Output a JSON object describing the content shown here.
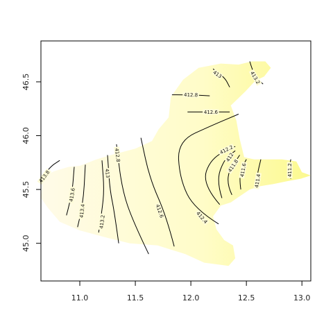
{
  "chart_data": {
    "type": "contour",
    "title": "",
    "xlabel": "",
    "ylabel": "",
    "xlim": [
      10.65,
      13.08
    ],
    "ylim": [
      44.65,
      46.88
    ],
    "x_ticks": [
      {
        "value": 11.0,
        "label": "11.0"
      },
      {
        "value": 11.5,
        "label": "11.5"
      },
      {
        "value": 12.0,
        "label": "12.0"
      },
      {
        "value": 12.5,
        "label": "12.5"
      },
      {
        "value": 13.0,
        "label": "13.0"
      }
    ],
    "y_ticks": [
      {
        "value": 45.0,
        "label": "45.0"
      },
      {
        "value": 45.5,
        "label": "45.5"
      },
      {
        "value": 46.0,
        "label": "46.0"
      },
      {
        "value": 46.5,
        "label": "46.5"
      }
    ],
    "grid": false,
    "fill_colors": {
      "low": "#fffbe8",
      "mid": "#fffcc8",
      "high": "#fcf98e"
    },
    "region_outline": [
      [
        11.71,
        46.06
      ],
      [
        11.8,
        46.17
      ],
      [
        11.82,
        46.36
      ],
      [
        11.93,
        46.52
      ],
      [
        12.07,
        46.63
      ],
      [
        12.27,
        46.67
      ],
      [
        12.43,
        46.66
      ],
      [
        12.55,
        46.69
      ],
      [
        12.67,
        46.69
      ],
      [
        12.72,
        46.63
      ],
      [
        12.66,
        46.55
      ],
      [
        12.58,
        46.51
      ],
      [
        12.49,
        46.41
      ],
      [
        12.36,
        46.28
      ],
      [
        12.41,
        46.14
      ],
      [
        12.44,
        45.97
      ],
      [
        12.48,
        45.8
      ],
      [
        12.57,
        45.78
      ],
      [
        12.72,
        45.78
      ],
      [
        12.82,
        45.78
      ],
      [
        12.95,
        45.76
      ],
      [
        13.0,
        45.66
      ],
      [
        13.08,
        45.63
      ],
      [
        12.99,
        45.6
      ],
      [
        12.88,
        45.58
      ],
      [
        12.74,
        45.55
      ],
      [
        12.62,
        45.53
      ],
      [
        12.53,
        45.5
      ],
      [
        12.43,
        45.43
      ],
      [
        12.36,
        45.38
      ],
      [
        12.27,
        45.35
      ],
      [
        12.2,
        45.25
      ],
      [
        12.23,
        45.13
      ],
      [
        12.3,
        45.03
      ],
      [
        12.38,
        44.98
      ],
      [
        12.4,
        44.86
      ],
      [
        12.34,
        44.79
      ],
      [
        12.12,
        44.82
      ],
      [
        11.95,
        44.9
      ],
      [
        11.7,
        44.98
      ],
      [
        11.45,
        45.0
      ],
      [
        11.25,
        45.05
      ],
      [
        11.0,
        45.12
      ],
      [
        10.82,
        45.2
      ],
      [
        10.72,
        45.32
      ],
      [
        10.65,
        45.42
      ],
      [
        10.67,
        45.62
      ],
      [
        10.77,
        45.67
      ],
      [
        10.9,
        45.71
      ],
      [
        11.0,
        45.72
      ],
      [
        11.15,
        45.78
      ],
      [
        11.28,
        45.82
      ],
      [
        11.5,
        45.88
      ],
      [
        11.65,
        45.95
      ],
      [
        11.71,
        46.06
      ]
    ],
    "contours": [
      {
        "level": "413.8",
        "points": [
          [
            10.65,
            45.6
          ],
          [
            10.73,
            45.71
          ],
          [
            10.82,
            45.77
          ]
        ],
        "label_at": [
          10.68,
          45.62
        ]
      },
      {
        "level": "413.6",
        "points": [
          [
            10.88,
            45.26
          ],
          [
            10.93,
            45.45
          ],
          [
            10.95,
            45.71
          ]
        ],
        "label_at": [
          10.93,
          45.45
        ]
      },
      {
        "level": "413.4",
        "points": [
          [
            10.98,
            45.15
          ],
          [
            11.03,
            45.35
          ],
          [
            11.05,
            45.73
          ]
        ],
        "label_at": [
          11.02,
          45.3
        ]
      },
      {
        "level": "413.2",
        "points": [
          [
            11.17,
            45.1
          ],
          [
            11.2,
            45.3
          ],
          [
            11.22,
            45.5
          ],
          [
            11.2,
            45.77
          ]
        ],
        "label_at": [
          11.2,
          45.2
        ]
      },
      {
        "level": "413",
        "points": [
          [
            11.35,
            45.0
          ],
          [
            11.31,
            45.3
          ],
          [
            11.27,
            45.5
          ],
          [
            11.25,
            45.82
          ]
        ],
        "label_at": [
          11.25,
          45.65
        ]
      },
      {
        "level": "412.8",
        "points": [
          [
            11.62,
            44.9
          ],
          [
            11.48,
            45.2
          ],
          [
            11.38,
            45.5
          ],
          [
            11.33,
            45.92
          ]
        ],
        "label_at": [
          11.34,
          45.82
        ]
      },
      {
        "level": "412.6",
        "points": [
          [
            11.85,
            44.97
          ],
          [
            11.78,
            45.25
          ],
          [
            11.63,
            45.6
          ],
          [
            11.55,
            45.98
          ]
        ],
        "label_at": [
          11.72,
          45.3
        ]
      },
      {
        "level": "412.4",
        "points": [
          [
            12.25,
            45.18
          ],
          [
            12.03,
            45.32
          ],
          [
            11.9,
            45.6
          ],
          [
            11.88,
            45.95
          ],
          [
            12.2,
            46.1
          ],
          [
            12.43,
            46.2
          ]
        ],
        "label_at": [
          12.1,
          45.24
        ]
      },
      {
        "level": "412.2",
        "points": [
          [
            12.26,
            45.36
          ],
          [
            12.1,
            45.55
          ],
          [
            12.18,
            45.79
          ],
          [
            12.4,
            45.9
          ]
        ],
        "label_at": [
          12.32,
          45.87
        ]
      },
      {
        "level": "412",
        "points": [
          [
            12.28,
            45.42
          ],
          [
            12.23,
            45.58
          ],
          [
            12.3,
            45.78
          ],
          [
            12.4,
            45.86
          ]
        ],
        "label_at": [
          12.35,
          45.8
        ]
      },
      {
        "level": "411.8",
        "points": [
          [
            12.37,
            45.45
          ],
          [
            12.3,
            45.6
          ],
          [
            12.44,
            45.82
          ]
        ],
        "label_at": [
          12.38,
          45.72
        ]
      },
      {
        "level": "411.6",
        "points": [
          [
            12.45,
            45.5
          ],
          [
            12.43,
            45.65
          ],
          [
            12.5,
            45.78
          ]
        ],
        "label_at": [
          12.47,
          45.68
        ]
      },
      {
        "level": "411.4",
        "points": [
          [
            12.58,
            45.52
          ],
          [
            12.6,
            45.65
          ],
          [
            12.63,
            45.78
          ]
        ],
        "label_at": [
          12.6,
          45.58
        ]
      },
      {
        "level": "411.2",
        "points": [
          [
            12.9,
            45.6
          ],
          [
            12.88,
            45.68
          ],
          [
            12.9,
            45.78
          ]
        ],
        "label_at": [
          12.89,
          45.68
        ]
      },
      {
        "level": "412.8",
        "points": [
          [
            11.83,
            46.38
          ],
          [
            12.0,
            46.38
          ],
          [
            12.17,
            46.37
          ]
        ],
        "label_at": [
          12.0,
          46.38
        ]
      },
      {
        "level": "412.6",
        "points": [
          [
            11.97,
            46.22
          ],
          [
            12.12,
            46.22
          ],
          [
            12.35,
            46.22
          ]
        ],
        "label_at": [
          12.18,
          46.22
        ]
      },
      {
        "level": "413",
        "points": [
          [
            12.2,
            46.62
          ],
          [
            12.3,
            46.55
          ],
          [
            12.35,
            46.45
          ]
        ],
        "label_at": [
          12.24,
          46.57
        ]
      },
      {
        "level": "413.2",
        "points": [
          [
            12.53,
            46.69
          ],
          [
            12.57,
            46.55
          ],
          [
            12.65,
            46.48
          ]
        ],
        "label_at": [
          12.58,
          46.54
        ]
      }
    ]
  }
}
